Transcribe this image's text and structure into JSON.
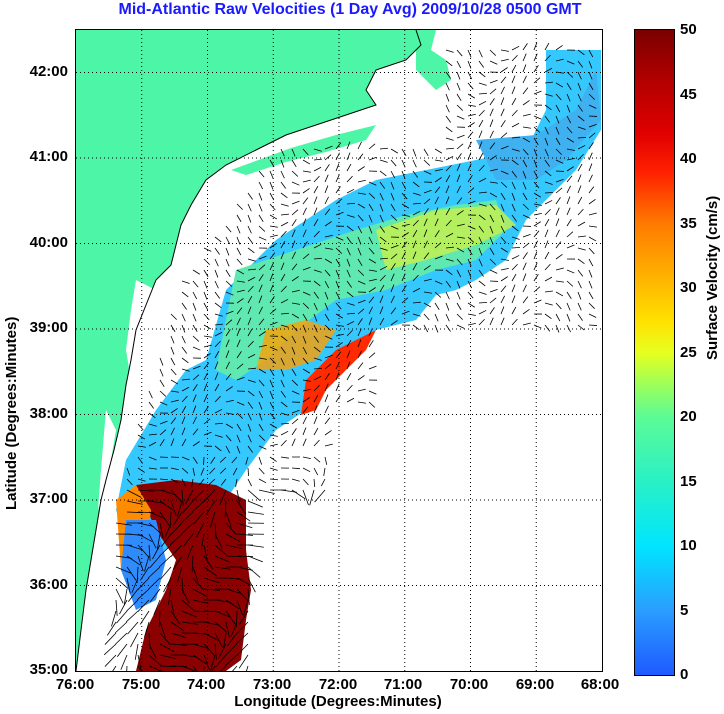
{
  "title": "Mid-Atlantic Raw Velocities (1 Day Avg) 2009/10/28 0500 GMT",
  "map": {
    "xlabel": "Longitude (Degrees:Minutes)",
    "ylabel": "Latitude (Degrees:Minutes)",
    "lon_range": [
      -76,
      -68
    ],
    "lat_range": [
      35,
      42.5
    ],
    "x_ticks": [
      "76:00",
      "75:00",
      "74:00",
      "73:00",
      "72:00",
      "71:00",
      "70:00",
      "69:00",
      "68:00"
    ],
    "y_ticks": [
      "35:00",
      "36:00",
      "37:00",
      "38:00",
      "39:00",
      "40:00",
      "41:00",
      "42:00"
    ],
    "land_color": "#4df6a6",
    "grid": "dotted"
  },
  "colorbar": {
    "label": "Surface Velocity (cm/s)",
    "ticks": [
      "0",
      "5",
      "10",
      "15",
      "20",
      "25",
      "30",
      "35",
      "40",
      "45",
      "50"
    ],
    "range": [
      0,
      50
    ]
  }
}
